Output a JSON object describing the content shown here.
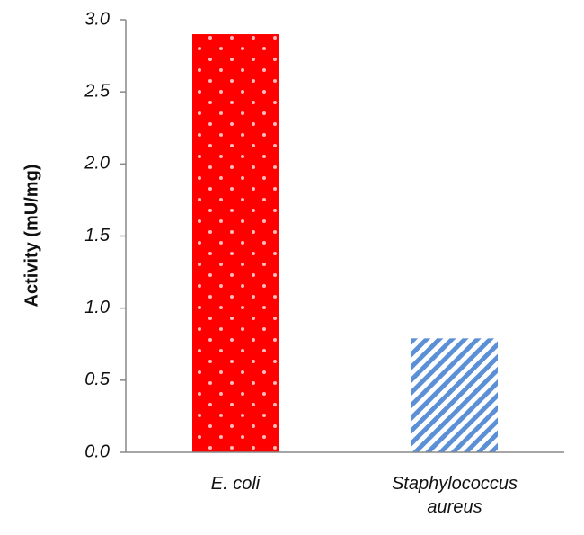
{
  "chart_data": {
    "type": "bar",
    "y_label": "Activity (mU/mg)",
    "categories": [
      "E. coli",
      "Staphylococcus aureus"
    ],
    "values": [
      2.9,
      0.79
    ],
    "colors": [
      "#ff0000",
      "#5b8fd6"
    ],
    "ylim": [
      0,
      3
    ],
    "yticks": [
      {
        "value": 0,
        "label": "0.0"
      },
      0.5,
      {
        "value": 1,
        "label": "1.0"
      },
      1.5,
      {
        "value": 2,
        "label": "2.0"
      },
      2.5,
      {
        "value": 3,
        "label": "3.0"
      }
    ]
  }
}
